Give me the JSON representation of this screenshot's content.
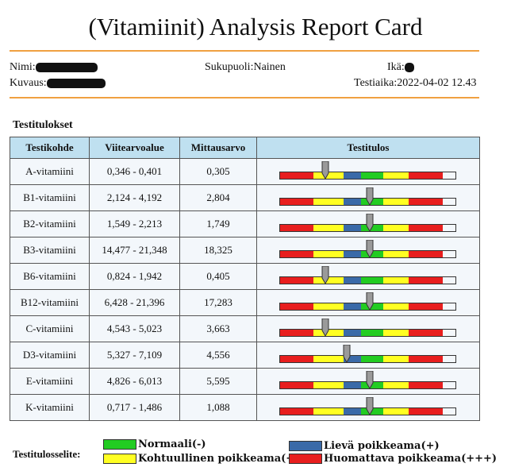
{
  "title": "(Vitamiinit) Analysis Report Card",
  "patient": {
    "name_label": "Nimi:",
    "gender_label": "Sukupuoli:",
    "gender_value": "Nainen",
    "age_label": "Ikä:",
    "description_label": "Kuvaus:",
    "test_time_label": "Testiaika:",
    "test_time_value": "2022-04-02 12.43"
  },
  "section_title": "Testitulokset",
  "table": {
    "headers": [
      "Testikohde",
      "Viitearvoalue",
      "Mittausarvo",
      "Testitulos"
    ],
    "rows": [
      {
        "item": "A-vitamiini",
        "range": "0,346 - 0,401",
        "value": "0,305",
        "level": 0.26
      },
      {
        "item": "B1-vitamiini",
        "range": "2,124 - 4,192",
        "value": "2,804",
        "level": 0.51
      },
      {
        "item": "B2-vitamiini",
        "range": "1,549 - 2,213",
        "value": "1,749",
        "level": 0.51
      },
      {
        "item": "B3-vitamiini",
        "range": "14,477 - 21,348",
        "value": "18,325",
        "level": 0.51
      },
      {
        "item": "B6-vitamiini",
        "range": "0,824 - 1,942",
        "value": "0,405",
        "level": 0.26
      },
      {
        "item": "B12-vitamiini",
        "range": "6,428 - 21,396",
        "value": "17,283",
        "level": 0.51
      },
      {
        "item": "C-vitamiini",
        "range": "4,543 - 5,023",
        "value": "3,663",
        "level": 0.26
      },
      {
        "item": "D3-vitamiini",
        "range": "5,327 - 7,109",
        "value": "4,556",
        "level": 0.38
      },
      {
        "item": "E-vitamiini",
        "range": "4,826 - 6,013",
        "value": "5,595",
        "level": 0.51
      },
      {
        "item": "K-vitamiini",
        "range": "0,717 - 1,486",
        "value": "1,088",
        "level": 0.51
      }
    ]
  },
  "bar_segments": [
    {
      "color": "#e81e1e"
    },
    {
      "color": "#ffff22"
    },
    {
      "color": "#3a6aa8"
    },
    {
      "color": "#22cc22"
    },
    {
      "color": "#ffff22"
    },
    {
      "color": "#e81e1e"
    }
  ],
  "legend": {
    "title": "Testitulosselite:",
    "normal": {
      "label": "Normaali(-)",
      "color": "#22cc22"
    },
    "mild": {
      "label": "Lievä poikkeama(+)",
      "color": "#3a6aa8"
    },
    "moderate": {
      "label": "Kohtuullinen poikkeama(++)",
      "color": "#ffff22"
    },
    "severe": {
      "label": "Huomattava poikkeama(+++)",
      "color": "#e81e1e"
    }
  }
}
